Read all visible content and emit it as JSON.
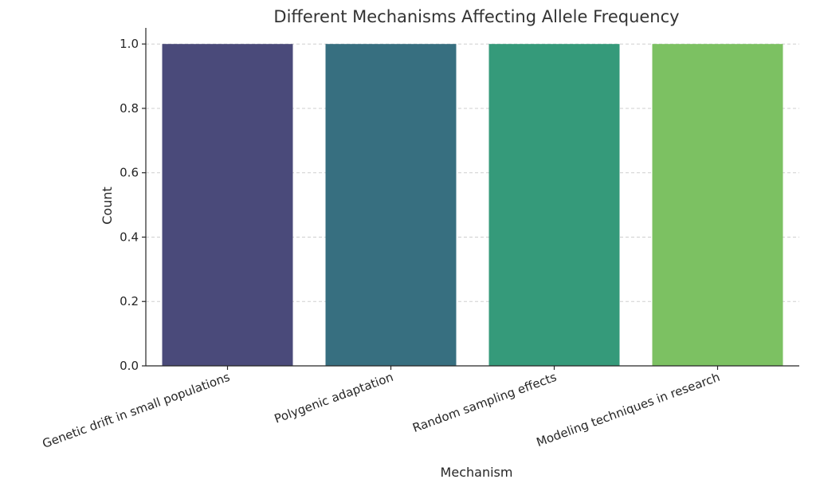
{
  "chart_data": {
    "type": "bar",
    "title": "Different Mechanisms Affecting Allele Frequency",
    "xlabel": "Mechanism",
    "ylabel": "Count",
    "categories": [
      "Genetic drift in small populations",
      "Polygenic adaptation",
      "Random sampling effects",
      "Modeling techniques in research"
    ],
    "values": [
      1,
      1,
      1,
      1
    ],
    "colors": [
      "#4a4a7a",
      "#376f80",
      "#359a7a",
      "#7cc162"
    ],
    "ylim": [
      0,
      1.05
    ],
    "yticks": [
      "0.0",
      "0.2",
      "0.4",
      "0.6",
      "0.8",
      "1.0"
    ],
    "grid": "y-dashed",
    "legend": "none"
  }
}
